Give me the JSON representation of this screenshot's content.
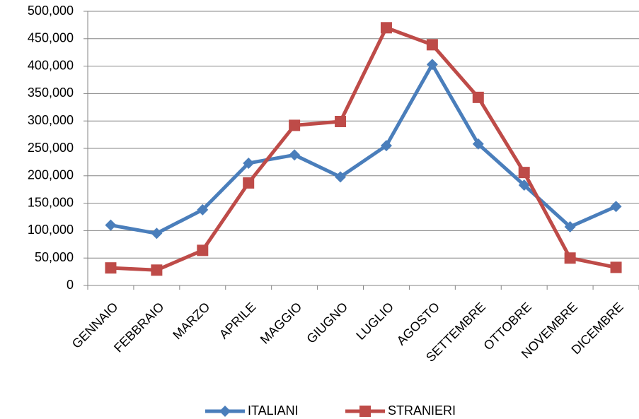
{
  "chart_data": {
    "type": "line",
    "categories": [
      "GENNAIO",
      "FEBBRAIO",
      "MARZO",
      "APRILE",
      "MAGGIO",
      "GIUGNO",
      "LUGLIO",
      "AGOSTO",
      "SETTEMBRE",
      "OTTOBRE",
      "NOVEMBRE",
      "DICEMBRE"
    ],
    "series": [
      {
        "name": "ITALIANI",
        "color": "#4a7ebb",
        "marker": "diamond",
        "values": [
          110000,
          95000,
          138000,
          223000,
          238000,
          198000,
          255000,
          403000,
          258000,
          183000,
          107000,
          144000
        ]
      },
      {
        "name": "STRANIERI",
        "color": "#be4b48",
        "marker": "square",
        "values": [
          32000,
          28000,
          64000,
          187000,
          292000,
          299000,
          470000,
          439000,
          343000,
          206000,
          50000,
          33000
        ]
      }
    ],
    "ylim": [
      0,
      500000
    ],
    "yticks": [
      0,
      {
        "value": 50000,
        "label": "50,000"
      },
      {
        "value": 100000,
        "label": "100,000"
      },
      {
        "value": 150000,
        "label": "150,000"
      },
      {
        "value": 200000,
        "label": "200,000"
      },
      {
        "value": 250000,
        "label": "250,000"
      },
      {
        "value": 300000,
        "label": "300,000"
      },
      {
        "value": 350000,
        "label": "350,000"
      },
      {
        "value": 400000,
        "label": "400,000"
      },
      {
        "value": 450000,
        "label": "450,000"
      },
      {
        "value": 500000,
        "label": "500,000"
      }
    ],
    "grid": true,
    "legend": "bottom"
  }
}
